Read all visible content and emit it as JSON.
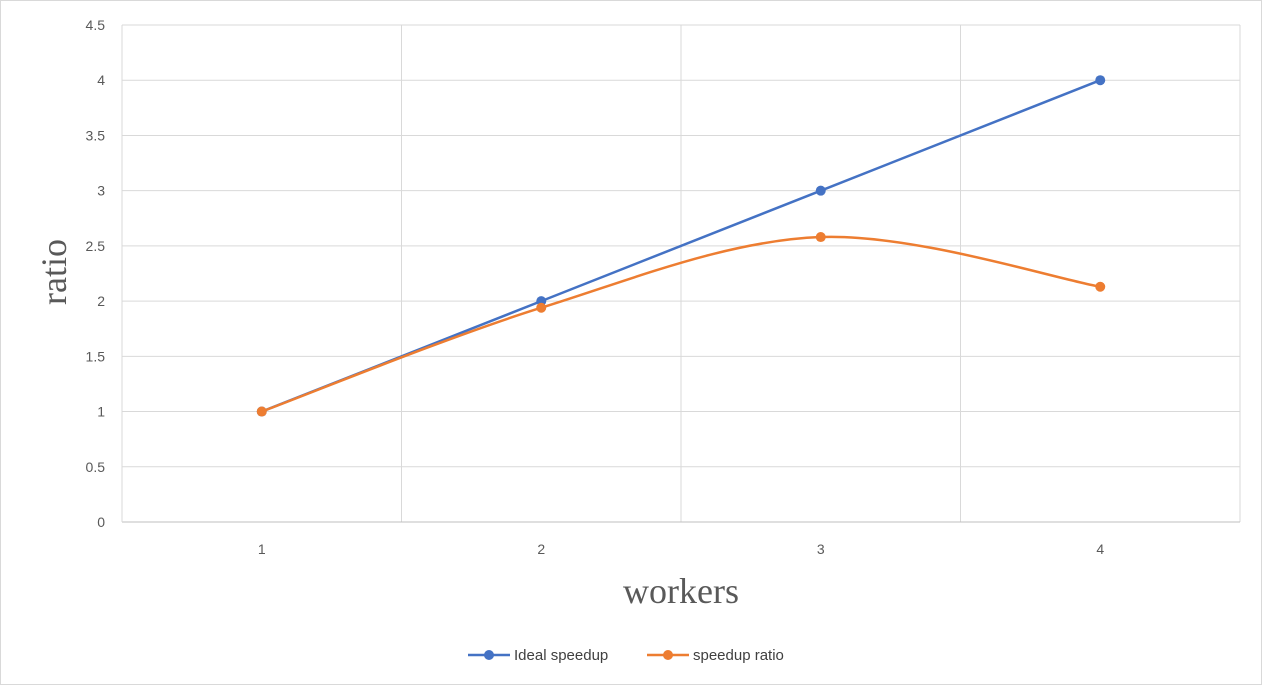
{
  "chart_data": {
    "type": "line",
    "xlabel": "workers",
    "ylabel": "ratio",
    "categories": [
      "1",
      "2",
      "3",
      "4"
    ],
    "ylim": [
      0,
      4.5
    ],
    "yticks": [
      "0",
      "0.5",
      "1",
      "1.5",
      "2",
      "2.5",
      "3",
      "3.5",
      "4",
      "4.5"
    ],
    "grid": true,
    "legend_position": "bottom",
    "series": [
      {
        "name": "Ideal speedup",
        "values": [
          1,
          2,
          3,
          4
        ],
        "color": "#4472c4",
        "smooth": false
      },
      {
        "name": "speedup ratio",
        "values": [
          1,
          1.94,
          2.58,
          2.13
        ],
        "color": "#ed7d31",
        "smooth": true
      }
    ]
  }
}
